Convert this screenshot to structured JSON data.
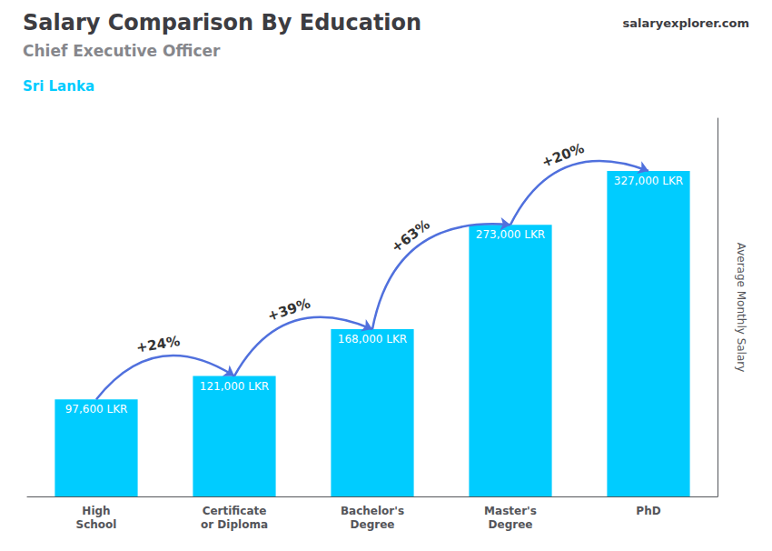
{
  "chart_data": {
    "type": "bar",
    "title": "Salary Comparison By Education",
    "subtitle": "Chief Executive Officer",
    "country": "Sri Lanka",
    "website": [
      "salary",
      "explorer.com"
    ],
    "ylabel": "Average Monthly Salary",
    "categories": [
      "High\nSchool",
      "Certificate\nor Diploma",
      "Bachelor's\nDegree",
      "Master's\nDegree",
      "PhD"
    ],
    "values": [
      97600,
      121000,
      168000,
      273000,
      327000
    ],
    "value_labels": [
      "97,600 LKR",
      "121,000 LKR",
      "168,000 LKR",
      "273,000 LKR",
      "327,000 LKR"
    ],
    "data_labels": true,
    "annotations": [
      "+24%",
      "+39%",
      "+63%",
      "+20%"
    ],
    "color": "#00ccff",
    "ylim": [
      0,
      380000
    ],
    "tick_labels": "x",
    "grid": false
  }
}
